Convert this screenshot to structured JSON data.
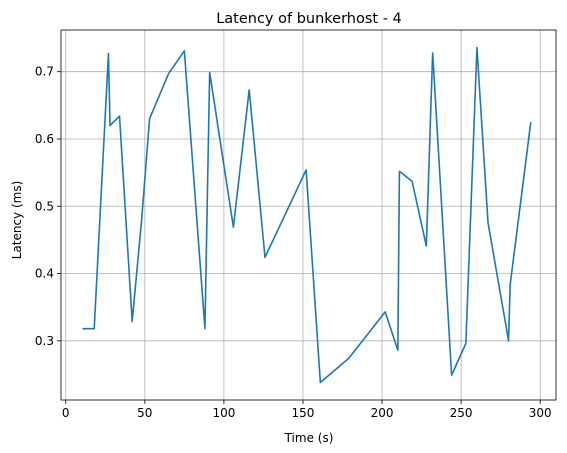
{
  "chart_data": {
    "type": "line",
    "title": "Latency of bunkerhost - 4",
    "xlabel": "Time (s)",
    "ylabel": "Latency (ms)",
    "xlim": [
      -3,
      310
    ],
    "ylim": [
      0.212,
      0.762
    ],
    "grid": true,
    "x_ticks": [
      0,
      50,
      100,
      150,
      200,
      250,
      300
    ],
    "y_ticks": [
      0.3,
      0.4,
      0.5,
      0.6,
      0.7
    ],
    "x_tick_labels": [
      "0",
      "50",
      "100",
      "150",
      "200",
      "250",
      "300"
    ],
    "y_tick_labels": [
      "0.3",
      "0.4",
      "0.5",
      "0.6",
      "0.7"
    ],
    "colors": {
      "line": "#1f77b4",
      "grid": "#b0b0b0"
    },
    "series": [
      {
        "x": [
          11,
          18,
          27,
          28,
          34,
          42,
          48,
          53,
          65,
          75,
          88,
          91,
          106,
          116,
          126,
          152,
          161,
          179,
          202,
          210,
          211,
          219,
          228,
          232,
          244,
          253,
          260,
          267,
          280,
          281,
          294
        ],
        "y": [
          0.318,
          0.318,
          0.727,
          0.62,
          0.634,
          0.329,
          0.48,
          0.63,
          0.697,
          0.731,
          0.318,
          0.699,
          0.469,
          0.673,
          0.424,
          0.554,
          0.238,
          0.274,
          0.343,
          0.286,
          0.552,
          0.537,
          0.441,
          0.728,
          0.249,
          0.296,
          0.736,
          0.476,
          0.3,
          0.383,
          0.624
        ]
      }
    ]
  }
}
